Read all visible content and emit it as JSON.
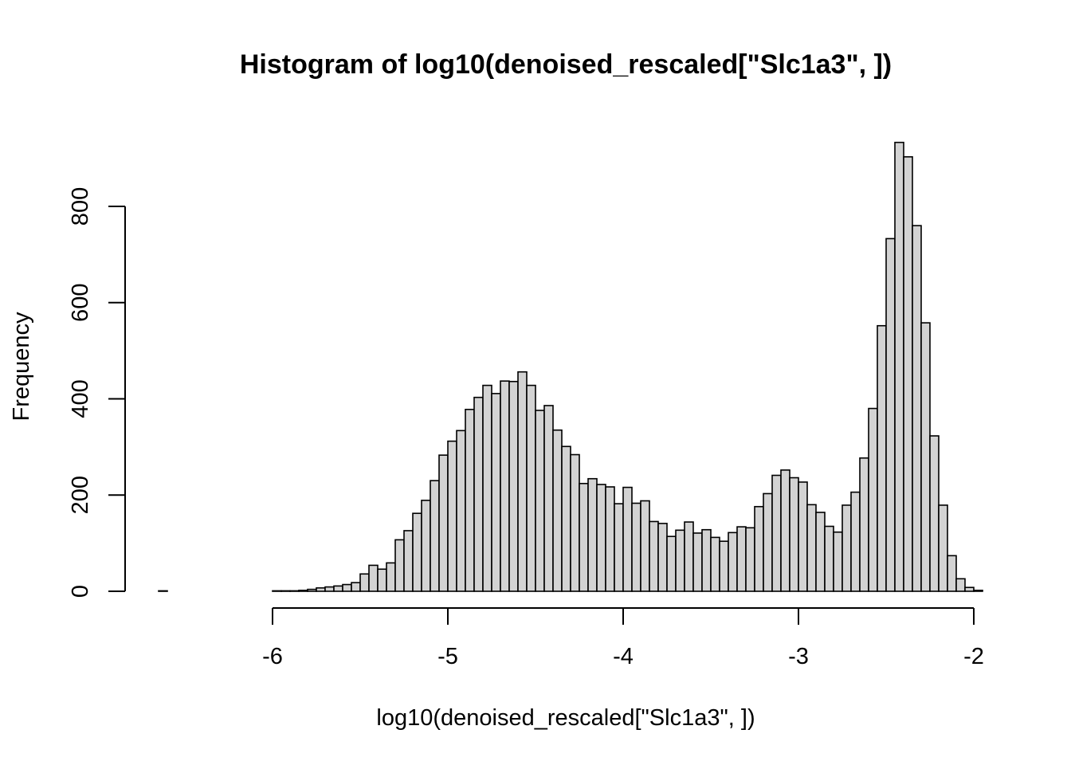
{
  "chart_data": {
    "type": "bar",
    "title": "Histogram of log10(denoised_rescaled[\"Slc1a3\", ])",
    "xlabel": "log10(denoised_rescaled[\"Slc1a3\", ])",
    "ylabel": "Frequency",
    "xlim": [
      -6.6,
      -2.0
    ],
    "ylim": [
      0,
      933
    ],
    "x_ticks": [
      -6,
      -5,
      -4,
      -3,
      -2
    ],
    "y_ticks": [
      0,
      200,
      400,
      600,
      800
    ],
    "bin_width": 0.05,
    "bin_start": -6.65,
    "values": [
      1,
      0,
      0,
      0,
      0,
      0,
      0,
      0,
      0,
      0,
      0,
      0,
      0,
      1,
      1,
      1,
      2,
      4,
      7,
      9,
      11,
      14,
      18,
      36,
      54,
      46,
      59,
      107,
      126,
      162,
      189,
      230,
      283,
      312,
      334,
      378,
      403,
      428,
      411,
      437,
      436,
      456,
      428,
      376,
      386,
      335,
      301,
      284,
      224,
      234,
      222,
      217,
      182,
      216,
      183,
      188,
      145,
      141,
      114,
      127,
      144,
      121,
      128,
      112,
      104,
      122,
      134,
      132,
      176,
      203,
      241,
      252,
      236,
      227,
      180,
      164,
      135,
      123,
      179,
      206,
      277,
      380,
      552,
      733,
      933,
      903,
      760,
      558,
      323,
      179,
      74,
      26,
      8,
      2
    ],
    "fill_color": "#d3d3d3",
    "edge_color": "#000000"
  }
}
